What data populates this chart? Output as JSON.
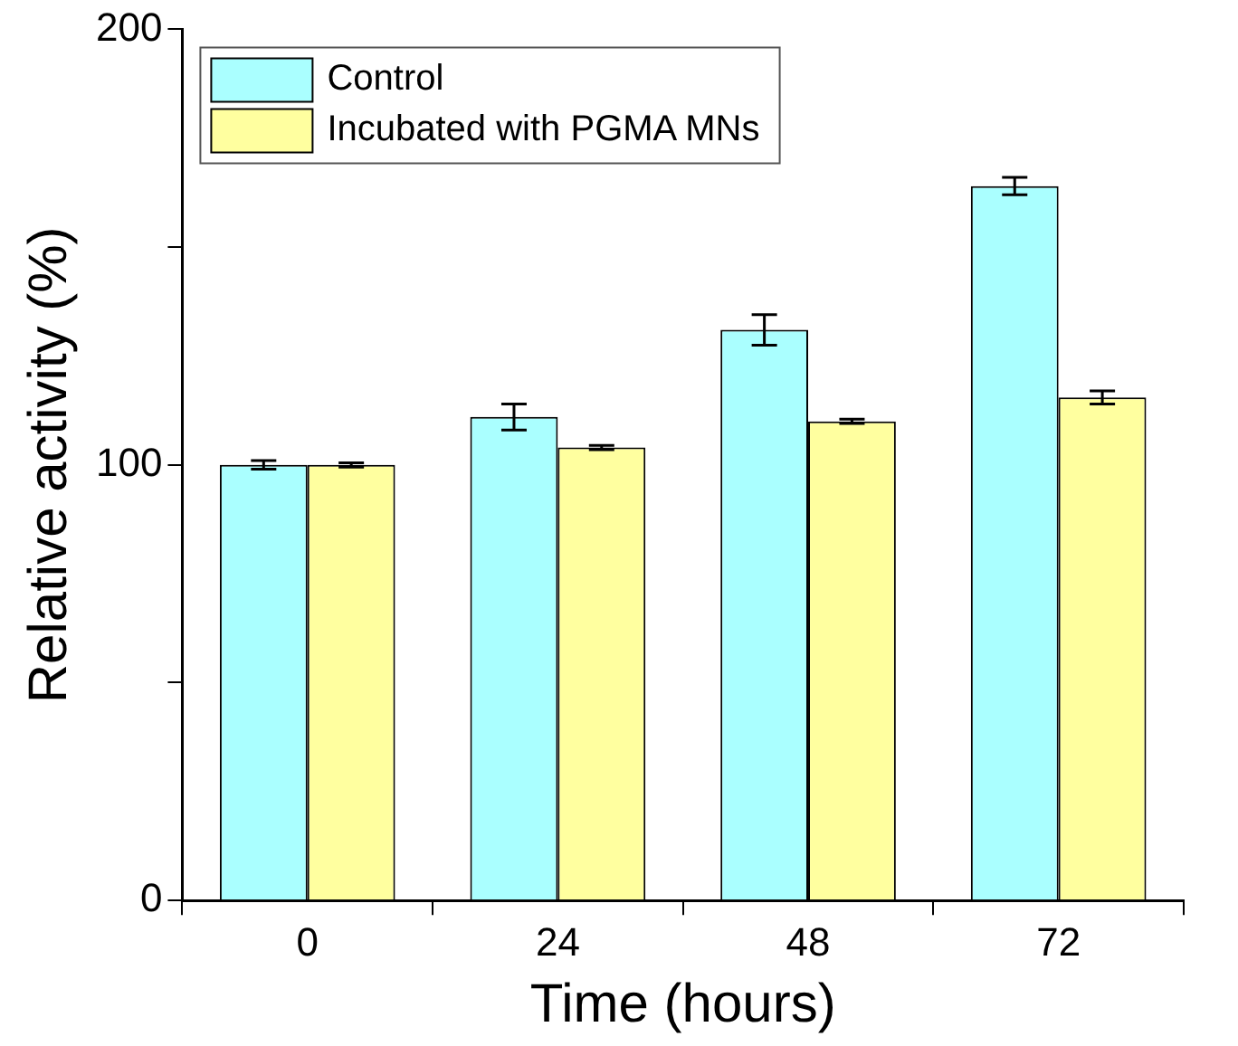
{
  "chart_data": {
    "type": "bar",
    "xlabel": "Time (hours)",
    "ylabel": "Relative activity (%)",
    "categories": [
      "0",
      "24",
      "48",
      "72"
    ],
    "series": [
      {
        "name": "Control",
        "color": "#aaffff",
        "values": [
          100,
          111,
          131,
          164
        ],
        "errors": [
          1,
          3,
          3.5,
          2
        ]
      },
      {
        "name": "Incubated with PGMA MNs",
        "color": "#ffff9f",
        "values": [
          100,
          104,
          110,
          115.5
        ],
        "errors": [
          0.5,
          0.5,
          0.5,
          1.5
        ]
      }
    ],
    "ylim": [
      0,
      200
    ],
    "yticks": [
      0,
      {
        "value": 50,
        "label": null
      },
      100,
      {
        "value": 150,
        "label": null
      },
      200
    ],
    "grid": false,
    "legend": "top left"
  }
}
